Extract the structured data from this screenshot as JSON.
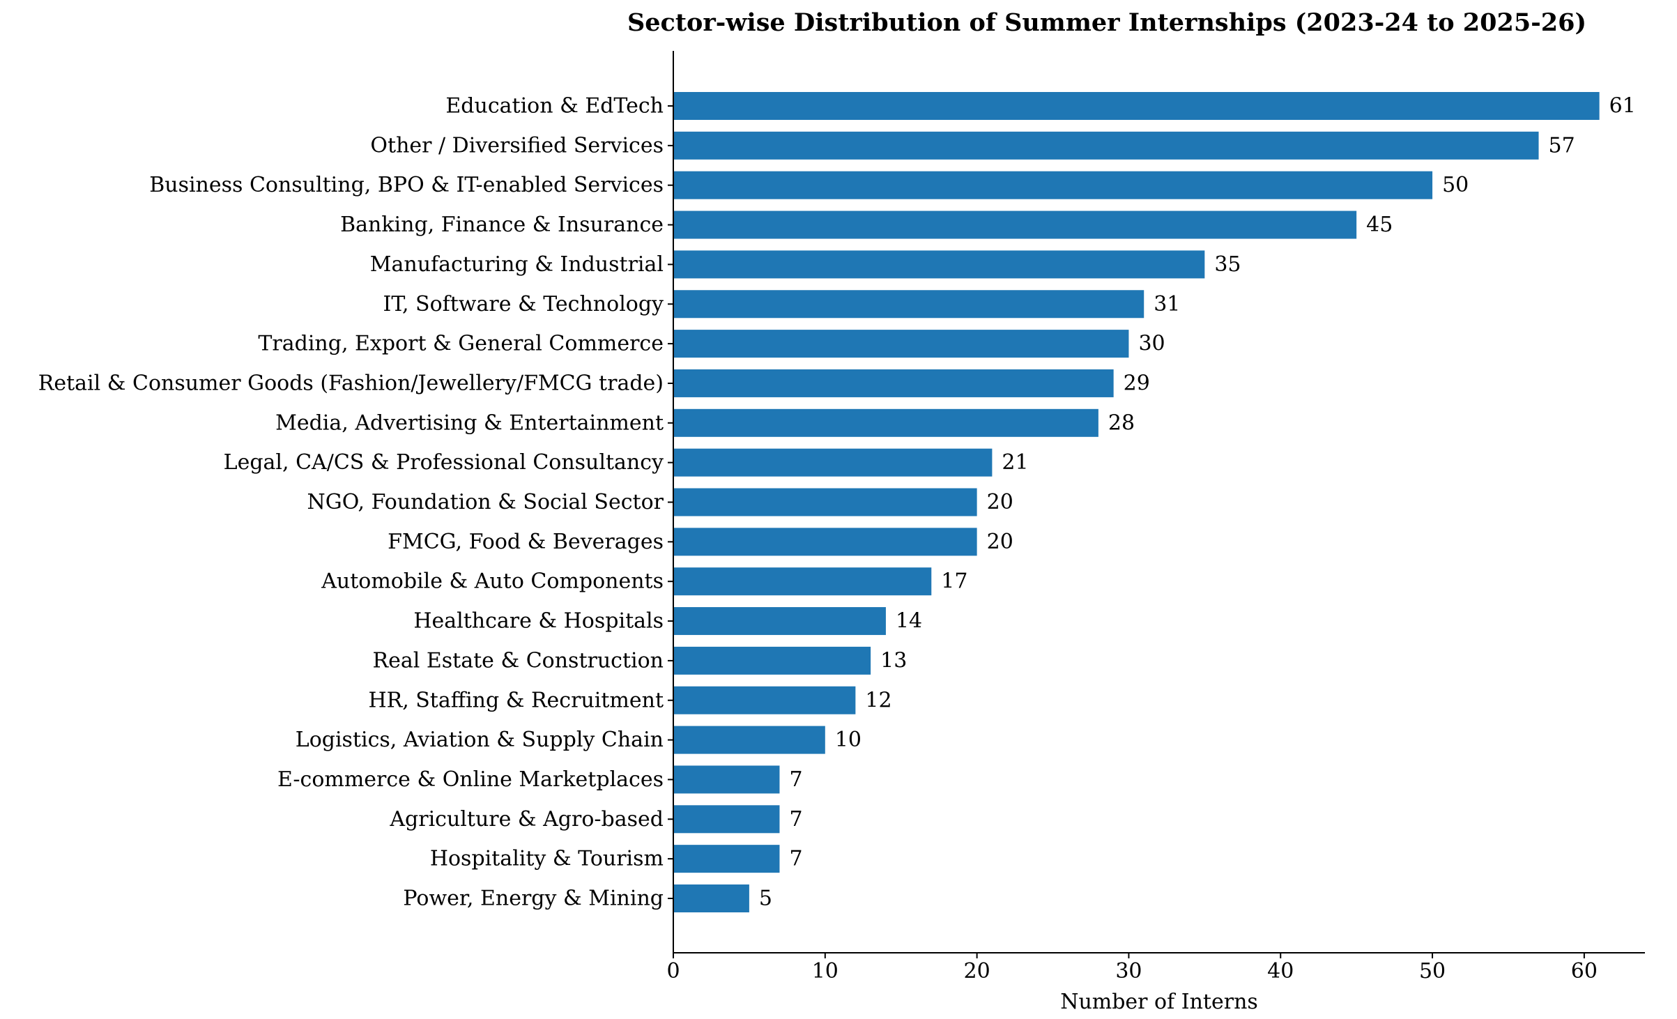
{
  "chart_data": {
    "type": "bar",
    "orientation": "horizontal",
    "title": "Sector-wise Distribution of Summer Internships (2023-24 to 2025-26)",
    "xlabel": "Number of Interns",
    "ylabel": "",
    "xlim": [
      0,
      64
    ],
    "x_ticks": [
      0,
      10,
      20,
      30,
      40,
      50,
      60
    ],
    "grid": false,
    "bar_color": "#1f77b4",
    "categories": [
      "Education & EdTech",
      "Other / Diversified Services",
      "Business Consulting, BPO & IT-enabled Services",
      "Banking, Finance & Insurance",
      "Manufacturing & Industrial",
      "IT, Software & Technology",
      "Trading, Export & General Commerce",
      "Retail & Consumer Goods (Fashion/Jewellery/FMCG trade)",
      "Media, Advertising & Entertainment",
      "Legal, CA/CS & Professional Consultancy",
      "NGO, Foundation & Social Sector",
      "FMCG, Food & Beverages",
      "Automobile & Auto Components",
      "Healthcare & Hospitals",
      "Real Estate & Construction",
      "HR, Staffing & Recruitment",
      "Logistics, Aviation & Supply Chain",
      "E-commerce & Online Marketplaces",
      "Agriculture & Agro-based",
      "Hospitality & Tourism",
      "Power, Energy & Mining"
    ],
    "values": [
      61,
      57,
      50,
      45,
      35,
      31,
      30,
      29,
      28,
      21,
      20,
      20,
      17,
      14,
      13,
      12,
      10,
      7,
      7,
      7,
      5
    ]
  }
}
